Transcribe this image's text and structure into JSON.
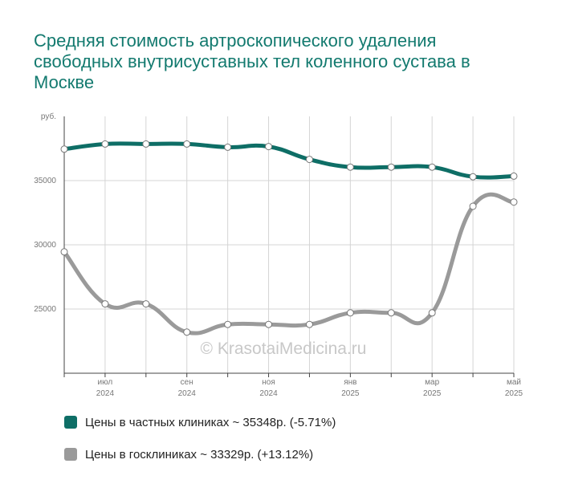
{
  "title": "Средняя стоимость артроскопического удаления свободных внутрисуставных тел коленного сустава в Москве",
  "watermark": "© KrasotaiMedicina.ru",
  "colors": {
    "private": "#0e6e66",
    "public": "#9a9a9a",
    "title": "#137a6f",
    "grid": "#d4d4d4"
  },
  "chart_data": {
    "type": "line",
    "unit_label": "руб.",
    "ylim": [
      20000,
      40000
    ],
    "yticks": [
      {
        "value": 25000,
        "label": "25000"
      },
      {
        "value": 30000,
        "label": "30000"
      },
      {
        "value": 35000,
        "label": "35000"
      }
    ],
    "xticks": [
      {
        "index": 1,
        "month": "июл",
        "year": "2024"
      },
      {
        "index": 3,
        "month": "сен",
        "year": "2024"
      },
      {
        "index": 5,
        "month": "ноя",
        "year": "2024"
      },
      {
        "index": 7,
        "month": "янв",
        "year": "2025"
      },
      {
        "index": 9,
        "month": "мар",
        "year": "2025"
      },
      {
        "index": 11,
        "month": "май",
        "year": "2025"
      }
    ],
    "series": [
      {
        "key": "private",
        "name": "Цены в частных клиниках",
        "values": [
          37450,
          37850,
          37850,
          37850,
          37600,
          37650,
          36650,
          36050,
          36050,
          36050,
          35300,
          35348
        ]
      },
      {
        "key": "public",
        "name": "Цены в госклиниках",
        "values": [
          29450,
          25400,
          25400,
          23200,
          23800,
          23800,
          23800,
          24700,
          24700,
          24700,
          33000,
          33329
        ]
      }
    ]
  },
  "legend": [
    {
      "key": "private",
      "label": "Цены в частных клиниках ~ 35348р. (-5.71%)"
    },
    {
      "key": "public",
      "label": "Цены в госклиниках ~ 33329р. (+13.12%)"
    }
  ]
}
